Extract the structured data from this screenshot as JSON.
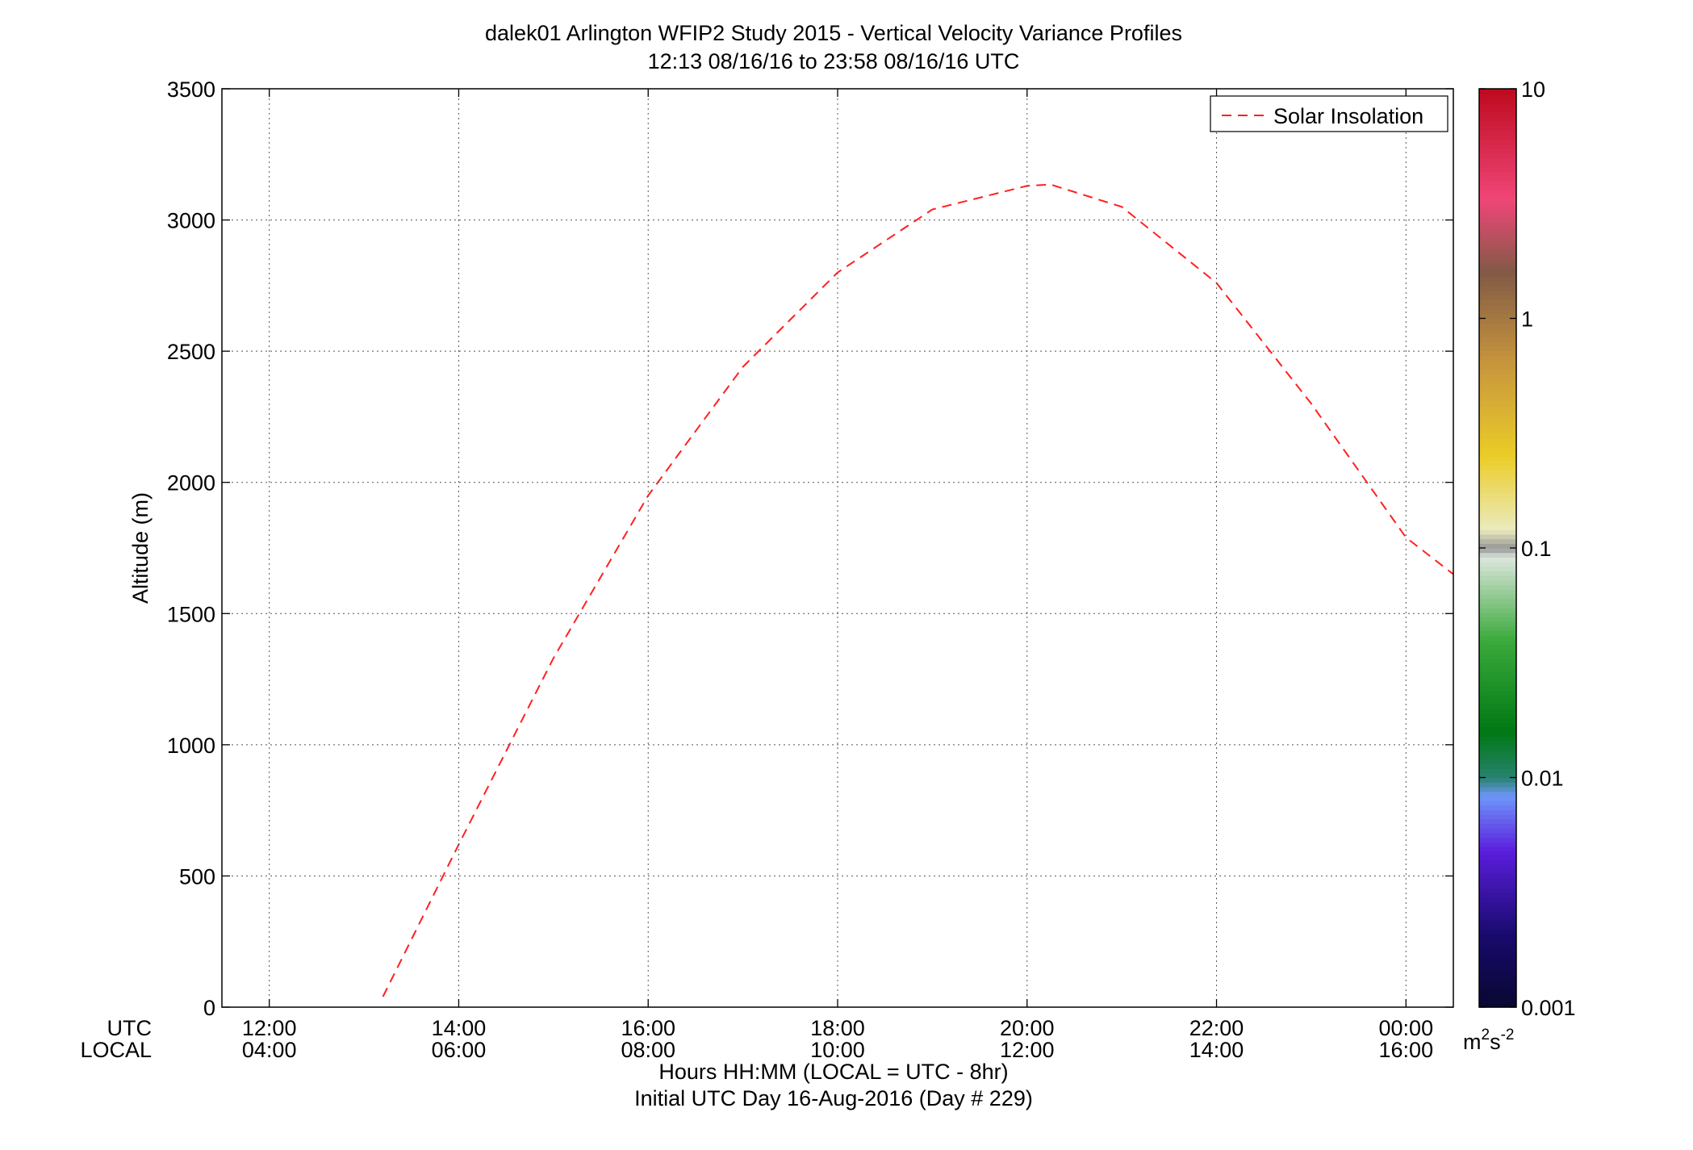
{
  "title_line1": "dalek01 Arlington WFIP2 Study 2015 - Vertical Velocity Variance Profiles",
  "title_line2": "12:13 08/16/16 to 23:58 08/16/16  UTC",
  "chart_data": {
    "type": "heatmap",
    "title": "dalek01 Arlington WFIP2 Study 2015 - Vertical Velocity Variance Profiles",
    "subtitle": "12:13 08/16/16 to 23:58 08/16/16  UTC",
    "ylabel": "Altitude (m)",
    "xlabel": "Hours HH:MM  (LOCAL = UTC - 8hr)",
    "xlabel2": "Initial UTC Day 16-Aug-2016 (Day # 229)",
    "x_row_labels": [
      "UTC",
      "LOCAL"
    ],
    "x_utc_ticks": [
      "12:00",
      "14:00",
      "16:00",
      "18:00",
      "20:00",
      "22:00",
      "00:00"
    ],
    "x_local_ticks": [
      "04:00",
      "06:00",
      "08:00",
      "10:00",
      "12:00",
      "14:00",
      "16:00"
    ],
    "x_tick_hours": [
      12,
      14,
      16,
      18,
      20,
      22,
      24
    ],
    "xlim_hours": [
      11.5,
      24.5
    ],
    "yticks": [
      0,
      500,
      1000,
      1500,
      2000,
      2500,
      3000,
      3500
    ],
    "ylim": [
      0,
      3500
    ],
    "grid": true,
    "legend": {
      "location": "top-right",
      "entries": [
        "Solar Insolation"
      ],
      "line_color": "#ff2020",
      "line_style": "dashed"
    },
    "colorbar": {
      "scale": "log",
      "range": [
        0.001,
        10
      ],
      "tick_labels": [
        "0.001",
        "0.01",
        "0.1",
        "1",
        "10"
      ],
      "unit_base": "m",
      "unit_exp1": "2",
      "unit_mid": "s",
      "unit_exp2": "-2"
    },
    "grid_spec": {
      "t0_hours": 12.25,
      "dt_hours": 0.25,
      "z0_m": 200,
      "dz_m": 100,
      "codes": "0123456789ABCDEFGHIJK",
      "legend_for_codes": "each char is a cell; '.' = no data; code k maps to log10(variance) = -3 + k*0.2",
      "rows": [
        "..................................................",
        "..................................................",
        "..................................................",
        "..................................................",
        "..................................................",
        "..................................................",
        "..................................................",
        "..................................................",
        "..................................................",
        "..................................................",
        "..................................................",
        "..................................................",
        "..................................................",
        "..................................................",
        "..................................................",
        "..................................................",
        "..................................................",
        "..................................................",
        "..................................................",
        "..................................................",
        "..................................................",
        "..................................................",
        "..................................................",
        "..................................................",
        "..................................................",
        "..................................................",
        "..................................................",
        "..................................................",
        "..................................................",
        "..................................................",
        "..................................................",
        "..................................................",
        "..................................................",
        "..................................................",
        "..................................................",
        "..................................................",
        "..................................................",
        "..................................................",
        "..................................................",
        "..................................................",
        "..................................................",
        "..................................................",
        "..................................................",
        "..................................................",
        "..................................................",
        "..................................................",
        "..................................................",
        "..................................................",
        "..................................................",
        ".................................................."
      ]
    },
    "solar_insolation": {
      "type": "line",
      "name": "Solar Insolation",
      "x_hours": [
        13.2,
        14.0,
        15.0,
        16.0,
        17.0,
        18.0,
        19.0,
        20.0,
        20.25,
        21.0,
        22.0,
        23.0,
        24.0,
        24.5
      ],
      "y_m": [
        40,
        620,
        1330,
        1950,
        2440,
        2800,
        3040,
        3130,
        3135,
        3050,
        2760,
        2300,
        1790,
        1650
      ]
    }
  }
}
